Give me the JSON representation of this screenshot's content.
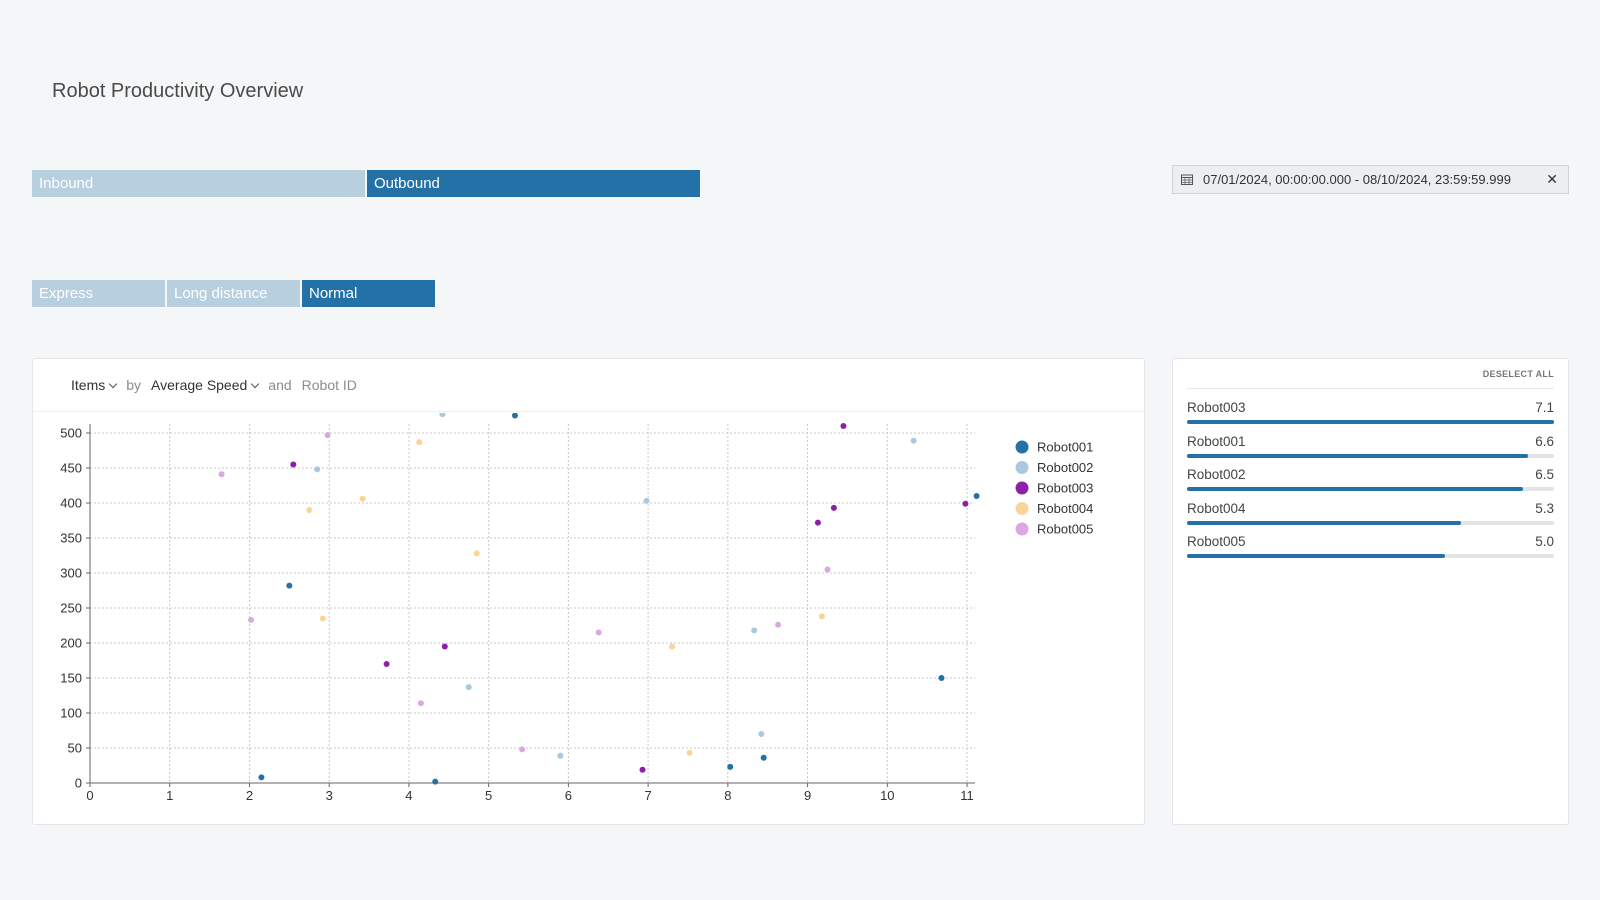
{
  "page": {
    "title": "Robot Productivity Overview"
  },
  "direction_filter": {
    "options": [
      {
        "label": "Inbound",
        "active": false
      },
      {
        "label": "Outbound",
        "active": true
      }
    ]
  },
  "shipment_filter": {
    "options": [
      {
        "label": "Express",
        "active": false
      },
      {
        "label": "Long distance",
        "active": false
      },
      {
        "label": "Normal",
        "active": true
      }
    ]
  },
  "date_range": {
    "value": "07/01/2024, 00:00:00.000 - 08/10/2024, 23:59:59.999",
    "icon": "calendar-icon",
    "clear_icon": "close-icon"
  },
  "chart_controls": {
    "measure": "Items",
    "by_word": "by",
    "dimension": "Average Speed",
    "and_word": "and",
    "group": "Robot ID"
  },
  "chart_data": {
    "type": "scatter",
    "xlim": [
      0,
      11.1
    ],
    "ylim": [
      0,
      520
    ],
    "x_ticks": [
      0,
      1,
      2,
      3,
      4,
      5,
      6,
      7,
      8,
      9,
      10,
      11
    ],
    "y_ticks": [
      0,
      50,
      100,
      150,
      200,
      250,
      300,
      350,
      400,
      450,
      500
    ],
    "grid": true,
    "legend": "right",
    "series": [
      {
        "name": "Robot001",
        "color": "#2471a8",
        "points": [
          [
            2.15,
            8
          ],
          [
            2.5,
            282
          ],
          [
            4.33,
            2
          ],
          [
            5.33,
            525
          ],
          [
            8.03,
            23
          ],
          [
            8.45,
            36
          ],
          [
            10.68,
            150
          ],
          [
            11.12,
            410
          ]
        ]
      },
      {
        "name": "Robot002",
        "color": "#a8c9e0",
        "points": [
          [
            2.85,
            448
          ],
          [
            4.42,
            527
          ],
          [
            4.75,
            137
          ],
          [
            5.9,
            39
          ],
          [
            6.98,
            403
          ],
          [
            8.33,
            218
          ],
          [
            8.42,
            70
          ],
          [
            10.33,
            489
          ]
        ]
      },
      {
        "name": "Robot003",
        "color": "#8e1fa8",
        "points": [
          [
            2.55,
            455
          ],
          [
            3.72,
            170
          ],
          [
            4.45,
            195
          ],
          [
            6.93,
            19
          ],
          [
            9.13,
            372
          ],
          [
            9.33,
            393
          ],
          [
            9.45,
            510
          ],
          [
            10.98,
            399
          ]
        ]
      },
      {
        "name": "Robot004",
        "color": "#f8d49b",
        "points": [
          [
            2.75,
            390
          ],
          [
            2.92,
            235
          ],
          [
            3.42,
            406
          ],
          [
            4.13,
            487
          ],
          [
            4.85,
            328
          ],
          [
            7.3,
            195
          ],
          [
            7.52,
            43
          ],
          [
            9.18,
            238
          ]
        ]
      },
      {
        "name": "Robot005",
        "color": "#dba7e3",
        "points": [
          [
            1.65,
            441
          ],
          [
            2.02,
            233
          ],
          [
            2.98,
            497
          ],
          [
            4.15,
            114
          ],
          [
            5.42,
            48
          ],
          [
            6.38,
            215
          ],
          [
            8.63,
            226
          ],
          [
            9.25,
            305
          ]
        ]
      }
    ]
  },
  "ranking": {
    "deselect_label": "DESELECT ALL",
    "max": 7.1,
    "items": [
      {
        "name": "Robot003",
        "value": "7.1",
        "num": 7.1
      },
      {
        "name": "Robot001",
        "value": "6.6",
        "num": 6.6
      },
      {
        "name": "Robot002",
        "value": "6.5",
        "num": 6.5
      },
      {
        "name": "Robot004",
        "value": "5.3",
        "num": 5.3
      },
      {
        "name": "Robot005",
        "value": "5.0",
        "num": 5.0
      }
    ]
  }
}
